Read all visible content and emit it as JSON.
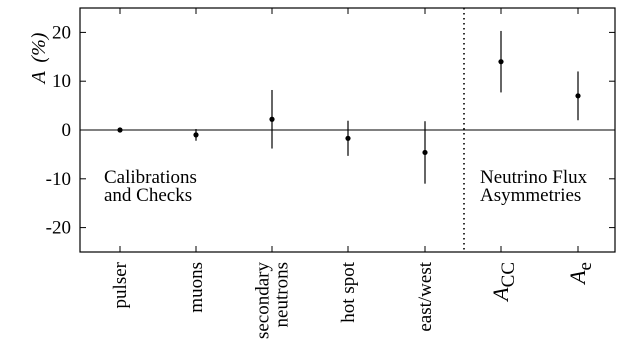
{
  "chart_data": {
    "type": "scatter",
    "ylabel": "A (%)",
    "ylabel_var": "A",
    "ylabel_unit": "(%)",
    "ylim": [
      -25,
      25
    ],
    "yticks": [
      20,
      10,
      0,
      -10,
      -20
    ],
    "ytick_labels": [
      "20",
      "10",
      "0",
      "-10",
      "-20"
    ],
    "zero_line": true,
    "grid": false,
    "categories": [
      {
        "label": "pulser",
        "lines": [
          "pulser"
        ]
      },
      {
        "label": "muons",
        "lines": [
          "muons"
        ]
      },
      {
        "label": "secondary neutrons",
        "lines": [
          "secondary",
          "neutrons"
        ]
      },
      {
        "label": "hot spot",
        "lines": [
          "hot spot"
        ]
      },
      {
        "label": "east/west",
        "lines": [
          "east/west"
        ]
      },
      {
        "label": "ACC",
        "base": "A",
        "sub": "CC"
      },
      {
        "label": "Ae",
        "base": "A",
        "sub": "e"
      }
    ],
    "points": [
      {
        "category": "pulser",
        "y": 0.0,
        "err_lo": 0.0,
        "err_hi": 0.0
      },
      {
        "category": "muons",
        "y": -1.0,
        "err_lo": 1.2,
        "err_hi": 1.2
      },
      {
        "category": "secondary neutrons",
        "y": 2.2,
        "err_lo": 6.0,
        "err_hi": 6.0
      },
      {
        "category": "hot spot",
        "y": -1.7,
        "err_lo": 3.6,
        "err_hi": 3.6
      },
      {
        "category": "east/west",
        "y": -4.6,
        "err_lo": 6.4,
        "err_hi": 6.4
      },
      {
        "category": "ACC",
        "y": 14.0,
        "err_lo": 6.3,
        "err_hi": 6.3
      },
      {
        "category": "Ae",
        "y": 7.0,
        "err_lo": 5.0,
        "err_hi": 5.0
      }
    ],
    "regions": [
      {
        "label": "Calibrations and Checks",
        "lines": [
          "Calibrations",
          "and Checks"
        ],
        "categories": [
          "pulser",
          "muons",
          "secondary neutrons",
          "hot spot",
          "east/west"
        ]
      },
      {
        "label": "Neutrino Flux Asymmetries",
        "lines": [
          "Neutrino Flux",
          "Asymmetries"
        ],
        "categories": [
          "ACC",
          "Ae"
        ]
      }
    ],
    "divider": {
      "style": "dotted",
      "between": [
        "east/west",
        "ACC"
      ]
    }
  }
}
